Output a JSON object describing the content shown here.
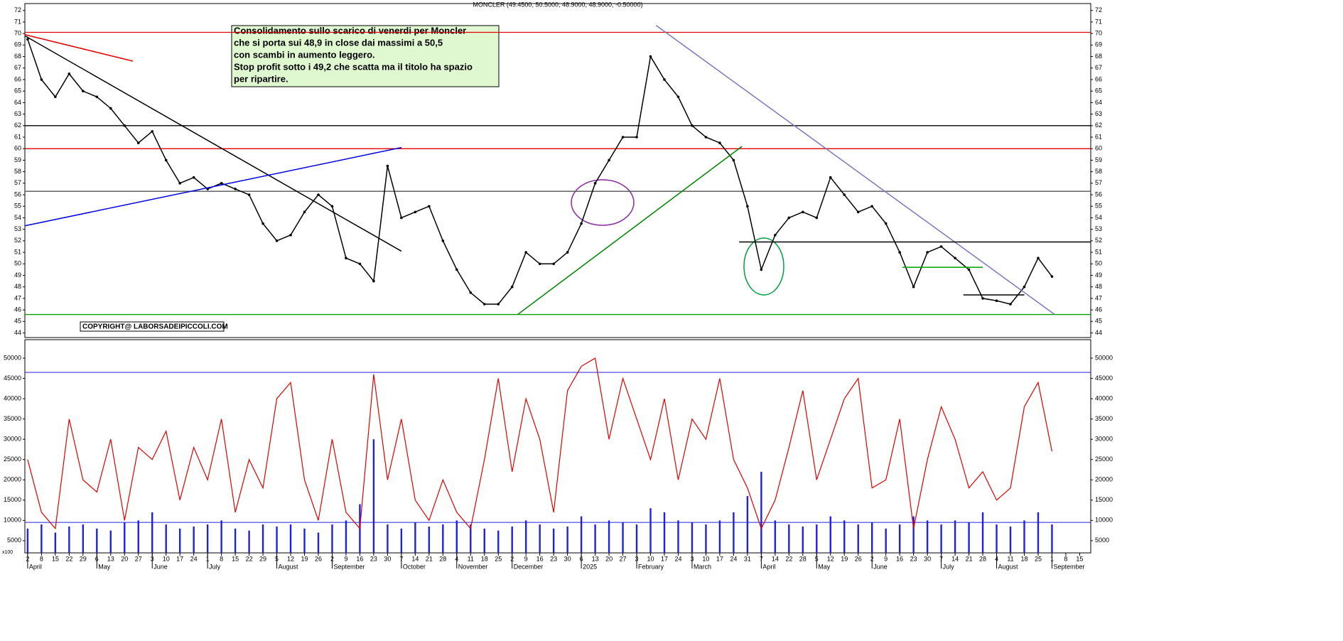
{
  "chart_data": {
    "type": "line",
    "title": "MONCLER (49.4500, 50.5000, 48.9000, 48.9000, -0.50000)",
    "annotation": [
      "Consolidamento sullo scarico di venerdi per Moncler",
      "che si porta sui 48,9 in close dai massimi a 50,5",
      "con scambi in aumento leggero.",
      "Stop profit sotto i 49,2 che scatta ma il titolo ha spazio",
      "per ripartire."
    ],
    "copyright": "COPYRIGHT@ LABORSADEIPICCOLI.COM",
    "volume_unit": "x100",
    "xlim": [
      -1,
      384
    ],
    "xticks": [
      {
        "value": 0,
        "label": "2"
      },
      {
        "value": 5,
        "label": "8"
      },
      {
        "value": 10,
        "label": "15"
      },
      {
        "value": 15,
        "label": "22"
      },
      {
        "value": 20,
        "label": "29"
      },
      {
        "value": 25,
        "label": "6"
      },
      {
        "value": 30,
        "label": "13"
      },
      {
        "value": 35,
        "label": "20"
      },
      {
        "value": 40,
        "label": "27"
      },
      {
        "value": 45,
        "label": "3"
      },
      {
        "value": 50,
        "label": "10"
      },
      {
        "value": 55,
        "label": "17"
      },
      {
        "value": 60,
        "label": "24"
      },
      {
        "value": 65,
        "label": "1"
      },
      {
        "value": 70,
        "label": "8"
      },
      {
        "value": 75,
        "label": "15"
      },
      {
        "value": 80,
        "label": "22"
      },
      {
        "value": 85,
        "label": "29"
      },
      {
        "value": 90,
        "label": "5"
      },
      {
        "value": 95,
        "label": "12"
      },
      {
        "value": 100,
        "label": "19"
      },
      {
        "value": 105,
        "label": "26"
      },
      {
        "value": 110,
        "label": "2"
      },
      {
        "value": 115,
        "label": "9"
      },
      {
        "value": 120,
        "label": "16"
      },
      {
        "value": 125,
        "label": "23"
      },
      {
        "value": 130,
        "label": "30"
      },
      {
        "value": 135,
        "label": "7"
      },
      {
        "value": 140,
        "label": "14"
      },
      {
        "value": 145,
        "label": "21"
      },
      {
        "value": 150,
        "label": "28"
      },
      {
        "value": 155,
        "label": "4"
      },
      {
        "value": 160,
        "label": "11"
      },
      {
        "value": 165,
        "label": "18"
      },
      {
        "value": 170,
        "label": "25"
      },
      {
        "value": 175,
        "label": "2"
      },
      {
        "value": 180,
        "label": "9"
      },
      {
        "value": 185,
        "label": "16"
      },
      {
        "value": 190,
        "label": "23"
      },
      {
        "value": 195,
        "label": "30"
      },
      {
        "value": 200,
        "label": "6"
      },
      {
        "value": 205,
        "label": "13"
      },
      {
        "value": 210,
        "label": "20"
      },
      {
        "value": 215,
        "label": "27"
      },
      {
        "value": 220,
        "label": "3"
      },
      {
        "value": 225,
        "label": "10"
      },
      {
        "value": 230,
        "label": "17"
      },
      {
        "value": 235,
        "label": "24"
      },
      {
        "value": 240,
        "label": "3"
      },
      {
        "value": 245,
        "label": "10"
      },
      {
        "value": 250,
        "label": "17"
      },
      {
        "value": 255,
        "label": "24"
      },
      {
        "value": 260,
        "label": "31"
      },
      {
        "value": 265,
        "label": "7"
      },
      {
        "value": 270,
        "label": "14"
      },
      {
        "value": 275,
        "label": "22"
      },
      {
        "value": 280,
        "label": "28"
      },
      {
        "value": 285,
        "label": "5"
      },
      {
        "value": 290,
        "label": "12"
      },
      {
        "value": 295,
        "label": "19"
      },
      {
        "value": 300,
        "label": "26"
      },
      {
        "value": 305,
        "label": "2"
      },
      {
        "value": 310,
        "label": "9"
      },
      {
        "value": 315,
        "label": "16"
      },
      {
        "value": 320,
        "label": "23"
      },
      {
        "value": 325,
        "label": "30"
      },
      {
        "value": 330,
        "label": "7"
      },
      {
        "value": 335,
        "label": "14"
      },
      {
        "value": 340,
        "label": "21"
      },
      {
        "value": 345,
        "label": "28"
      },
      {
        "value": 350,
        "label": "4"
      },
      {
        "value": 355,
        "label": "11"
      },
      {
        "value": 360,
        "label": "18"
      },
      {
        "value": 365,
        "label": "25"
      },
      {
        "value": 370,
        "label": "1"
      },
      {
        "value": 375,
        "label": "8"
      },
      {
        "value": 380,
        "label": "15"
      }
    ],
    "month_labels": [
      {
        "value": 0,
        "label": "April"
      },
      {
        "value": 25,
        "label": "May"
      },
      {
        "value": 45,
        "label": "June"
      },
      {
        "value": 65,
        "label": "July"
      },
      {
        "value": 90,
        "label": "August"
      },
      {
        "value": 110,
        "label": "September"
      },
      {
        "value": 135,
        "label": "October"
      },
      {
        "value": 155,
        "label": "November"
      },
      {
        "value": 175,
        "label": "December"
      },
      {
        "value": 200,
        "label": "2025"
      },
      {
        "value": 220,
        "label": "February"
      },
      {
        "value": 240,
        "label": "March"
      },
      {
        "value": 265,
        "label": "April"
      },
      {
        "value": 285,
        "label": "May"
      },
      {
        "value": 305,
        "label": "June"
      },
      {
        "value": 330,
        "label": "July"
      },
      {
        "value": 350,
        "label": "August"
      },
      {
        "value": 370,
        "label": "September"
      }
    ],
    "x": [
      0,
      5,
      10,
      15,
      20,
      25,
      30,
      35,
      40,
      45,
      50,
      55,
      60,
      65,
      70,
      75,
      80,
      85,
      90,
      95,
      100,
      105,
      110,
      115,
      120,
      125,
      130,
      135,
      140,
      145,
      150,
      155,
      160,
      165,
      170,
      175,
      180,
      185,
      190,
      195,
      200,
      205,
      210,
      215,
      220,
      225,
      230,
      235,
      240,
      245,
      250,
      255,
      260,
      265,
      270,
      275,
      280,
      285,
      290,
      295,
      300,
      305,
      310,
      315,
      320,
      325,
      330,
      335,
      340,
      345,
      350,
      355,
      360,
      365,
      370
    ],
    "price": {
      "name": "MONCLER",
      "color": "#000000",
      "values": [
        69.5,
        66,
        64.5,
        66.5,
        65,
        64.5,
        63.5,
        62,
        60.5,
        61.5,
        59,
        57,
        57.5,
        56.5,
        57,
        56.5,
        56,
        53.5,
        52,
        52.5,
        54.5,
        56,
        55,
        50.5,
        50,
        48.5,
        58.5,
        54,
        54.5,
        55,
        52,
        49.5,
        47.5,
        46.5,
        46.5,
        48,
        51,
        50,
        50,
        51,
        53.5,
        57,
        59,
        61,
        61,
        68,
        66,
        64.5,
        62,
        61,
        60.5,
        59,
        55,
        49.5,
        52.5,
        54,
        54.5,
        54,
        57.5,
        56,
        54.5,
        55,
        53.5,
        51,
        48,
        51,
        51.5,
        50.5,
        49.5,
        47,
        46.8,
        46.5,
        48,
        50.5,
        48.9
      ]
    },
    "ylim": [
      43.6,
      72.6
    ],
    "yticks": [
      44,
      45,
      46,
      47,
      48,
      49,
      50,
      51,
      52,
      53,
      54,
      55,
      56,
      57,
      58,
      59,
      60,
      61,
      62,
      63,
      64,
      65,
      66,
      67,
      68,
      69,
      70,
      71,
      72
    ],
    "levels": [
      {
        "value": 70.1,
        "color": "#e00000"
      },
      {
        "value": 62,
        "color": "#000000"
      },
      {
        "value": 60,
        "color": "#e00000"
      },
      {
        "value": 56.3,
        "color": "#555555"
      },
      {
        "value": 45.6,
        "color": "#00a000"
      }
    ],
    "trendlines": [
      {
        "x": [
          -1,
          135
        ],
        "y": [
          69.8,
          51.1
        ],
        "color": "#000000"
      },
      {
        "x": [
          -1,
          38
        ],
        "y": [
          69.9,
          67.6
        ],
        "color": "#e00000"
      },
      {
        "x": [
          -1,
          135
        ],
        "y": [
          53.3,
          60.1
        ],
        "color": "#0000e0"
      },
      {
        "x": [
          177,
          258
        ],
        "y": [
          45.6,
          60.2
        ],
        "color": "#008000"
      },
      {
        "x": [
          227,
          371
        ],
        "y": [
          70.7,
          45.6
        ],
        "color": "#7a7ac0"
      },
      {
        "x": [
          316,
          345
        ],
        "y": [
          49.7,
          49.7
        ],
        "color": "#00a000"
      },
      {
        "x": [
          257,
          384
        ],
        "y": [
          51.9,
          51.9
        ],
        "color": "#000000"
      },
      {
        "x": [
          338,
          360
        ],
        "y": [
          47.3,
          47.3
        ],
        "color": "#000000"
      }
    ],
    "volume": {
      "name": "Volume",
      "color": "#2020e0",
      "values": [
        8000,
        9000,
        7000,
        8500,
        9000,
        8000,
        7500,
        9500,
        10000,
        12000,
        9000,
        8000,
        8500,
        9000,
        10000,
        8000,
        7500,
        9000,
        8500,
        9000,
        8000,
        7000,
        9000,
        10000,
        14000,
        30000,
        9000,
        8000,
        9500,
        8500,
        9000,
        10000,
        9000,
        8000,
        7500,
        8500,
        10000,
        9000,
        8000,
        8500,
        11000,
        9000,
        10000,
        9500,
        9000,
        13000,
        12000,
        10000,
        9500,
        9000,
        10000,
        12000,
        16000,
        22000,
        10000,
        9000,
        8500,
        9000,
        11000,
        10000,
        9000,
        9500,
        8000,
        9000,
        11000,
        10000,
        9000,
        10000,
        9500,
        12000,
        9000,
        8500,
        10000,
        12000,
        9000
      ]
    },
    "volume_avg": {
      "name": "Volume avg",
      "color": "#e00000",
      "values": [
        25000,
        12000,
        8000,
        35000,
        20000,
        17000,
        30000,
        10000,
        28000,
        25000,
        32000,
        15000,
        28000,
        20000,
        35000,
        12000,
        25000,
        18000,
        40000,
        44000,
        20000,
        10000,
        30000,
        12000,
        8000,
        46000,
        20000,
        35000,
        15000,
        10000,
        20000,
        12000,
        8000,
        25000,
        45000,
        22000,
        40000,
        30000,
        12000,
        42000,
        48000,
        50000,
        30000,
        45000,
        35000,
        25000,
        40000,
        20000,
        35000,
        30000,
        45000,
        25000,
        18000,
        8000,
        15000,
        28000,
        42000,
        20000,
        30000,
        40000,
        45000,
        18000,
        20000,
        35000,
        8000,
        25000,
        38000,
        30000,
        18000,
        22000,
        15000,
        18000,
        38000,
        44000,
        27000
      ]
    },
    "volume_levels": [
      46500,
      9500
    ],
    "vlim": [
      2000,
      54550
    ],
    "vticks": [
      5000,
      10000,
      15000,
      20000,
      25000,
      30000,
      35000,
      40000,
      45000,
      50000
    ]
  }
}
